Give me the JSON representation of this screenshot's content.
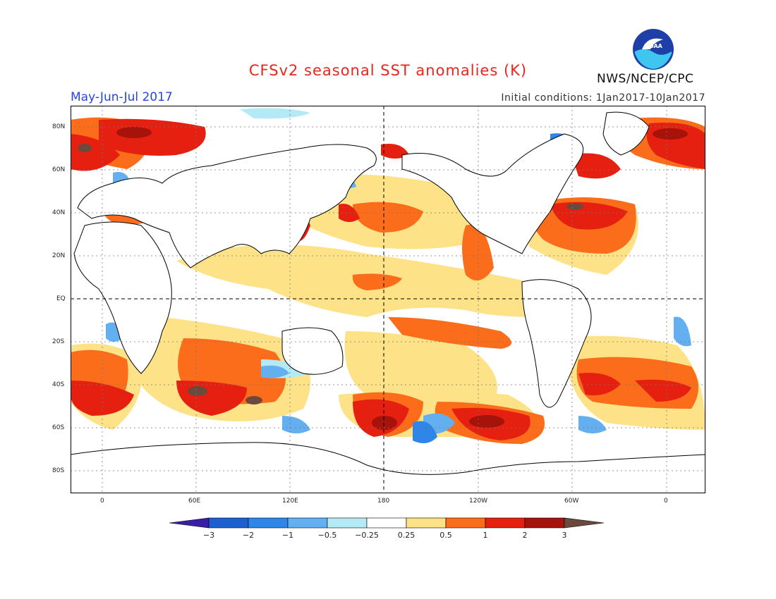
{
  "title": "CFSv2 seasonal SST anomalies (K)",
  "period": "May-Jun-Jul 2017",
  "initial_conditions": "Initial conditions: 1Jan2017-10Jan2017",
  "agency": "NWS/NCEP/CPC",
  "logo_text": "NOAA",
  "map": {
    "lat_labels": [
      "80N",
      "60N",
      "40N",
      "20N",
      "EQ",
      "20S",
      "40S",
      "60S",
      "80S"
    ],
    "lon_labels": [
      "0",
      "60E",
      "120E",
      "180",
      "120W",
      "60W",
      "0"
    ]
  },
  "colorbar": {
    "labels": [
      "−3",
      "−2",
      "−1",
      "−0.5",
      "−0.25",
      "0.25",
      "0.5",
      "1",
      "2",
      "3"
    ],
    "colors": [
      "#3a1ea6",
      "#1d5fcf",
      "#2f86e8",
      "#63aff0",
      "#b4eaf5",
      "#ffffff",
      "#fde288",
      "#fb6d1b",
      "#e62010",
      "#a6130b",
      "#6b4a3d"
    ]
  },
  "colors": {
    "title": "#e8261f",
    "period": "#2446e0"
  }
}
